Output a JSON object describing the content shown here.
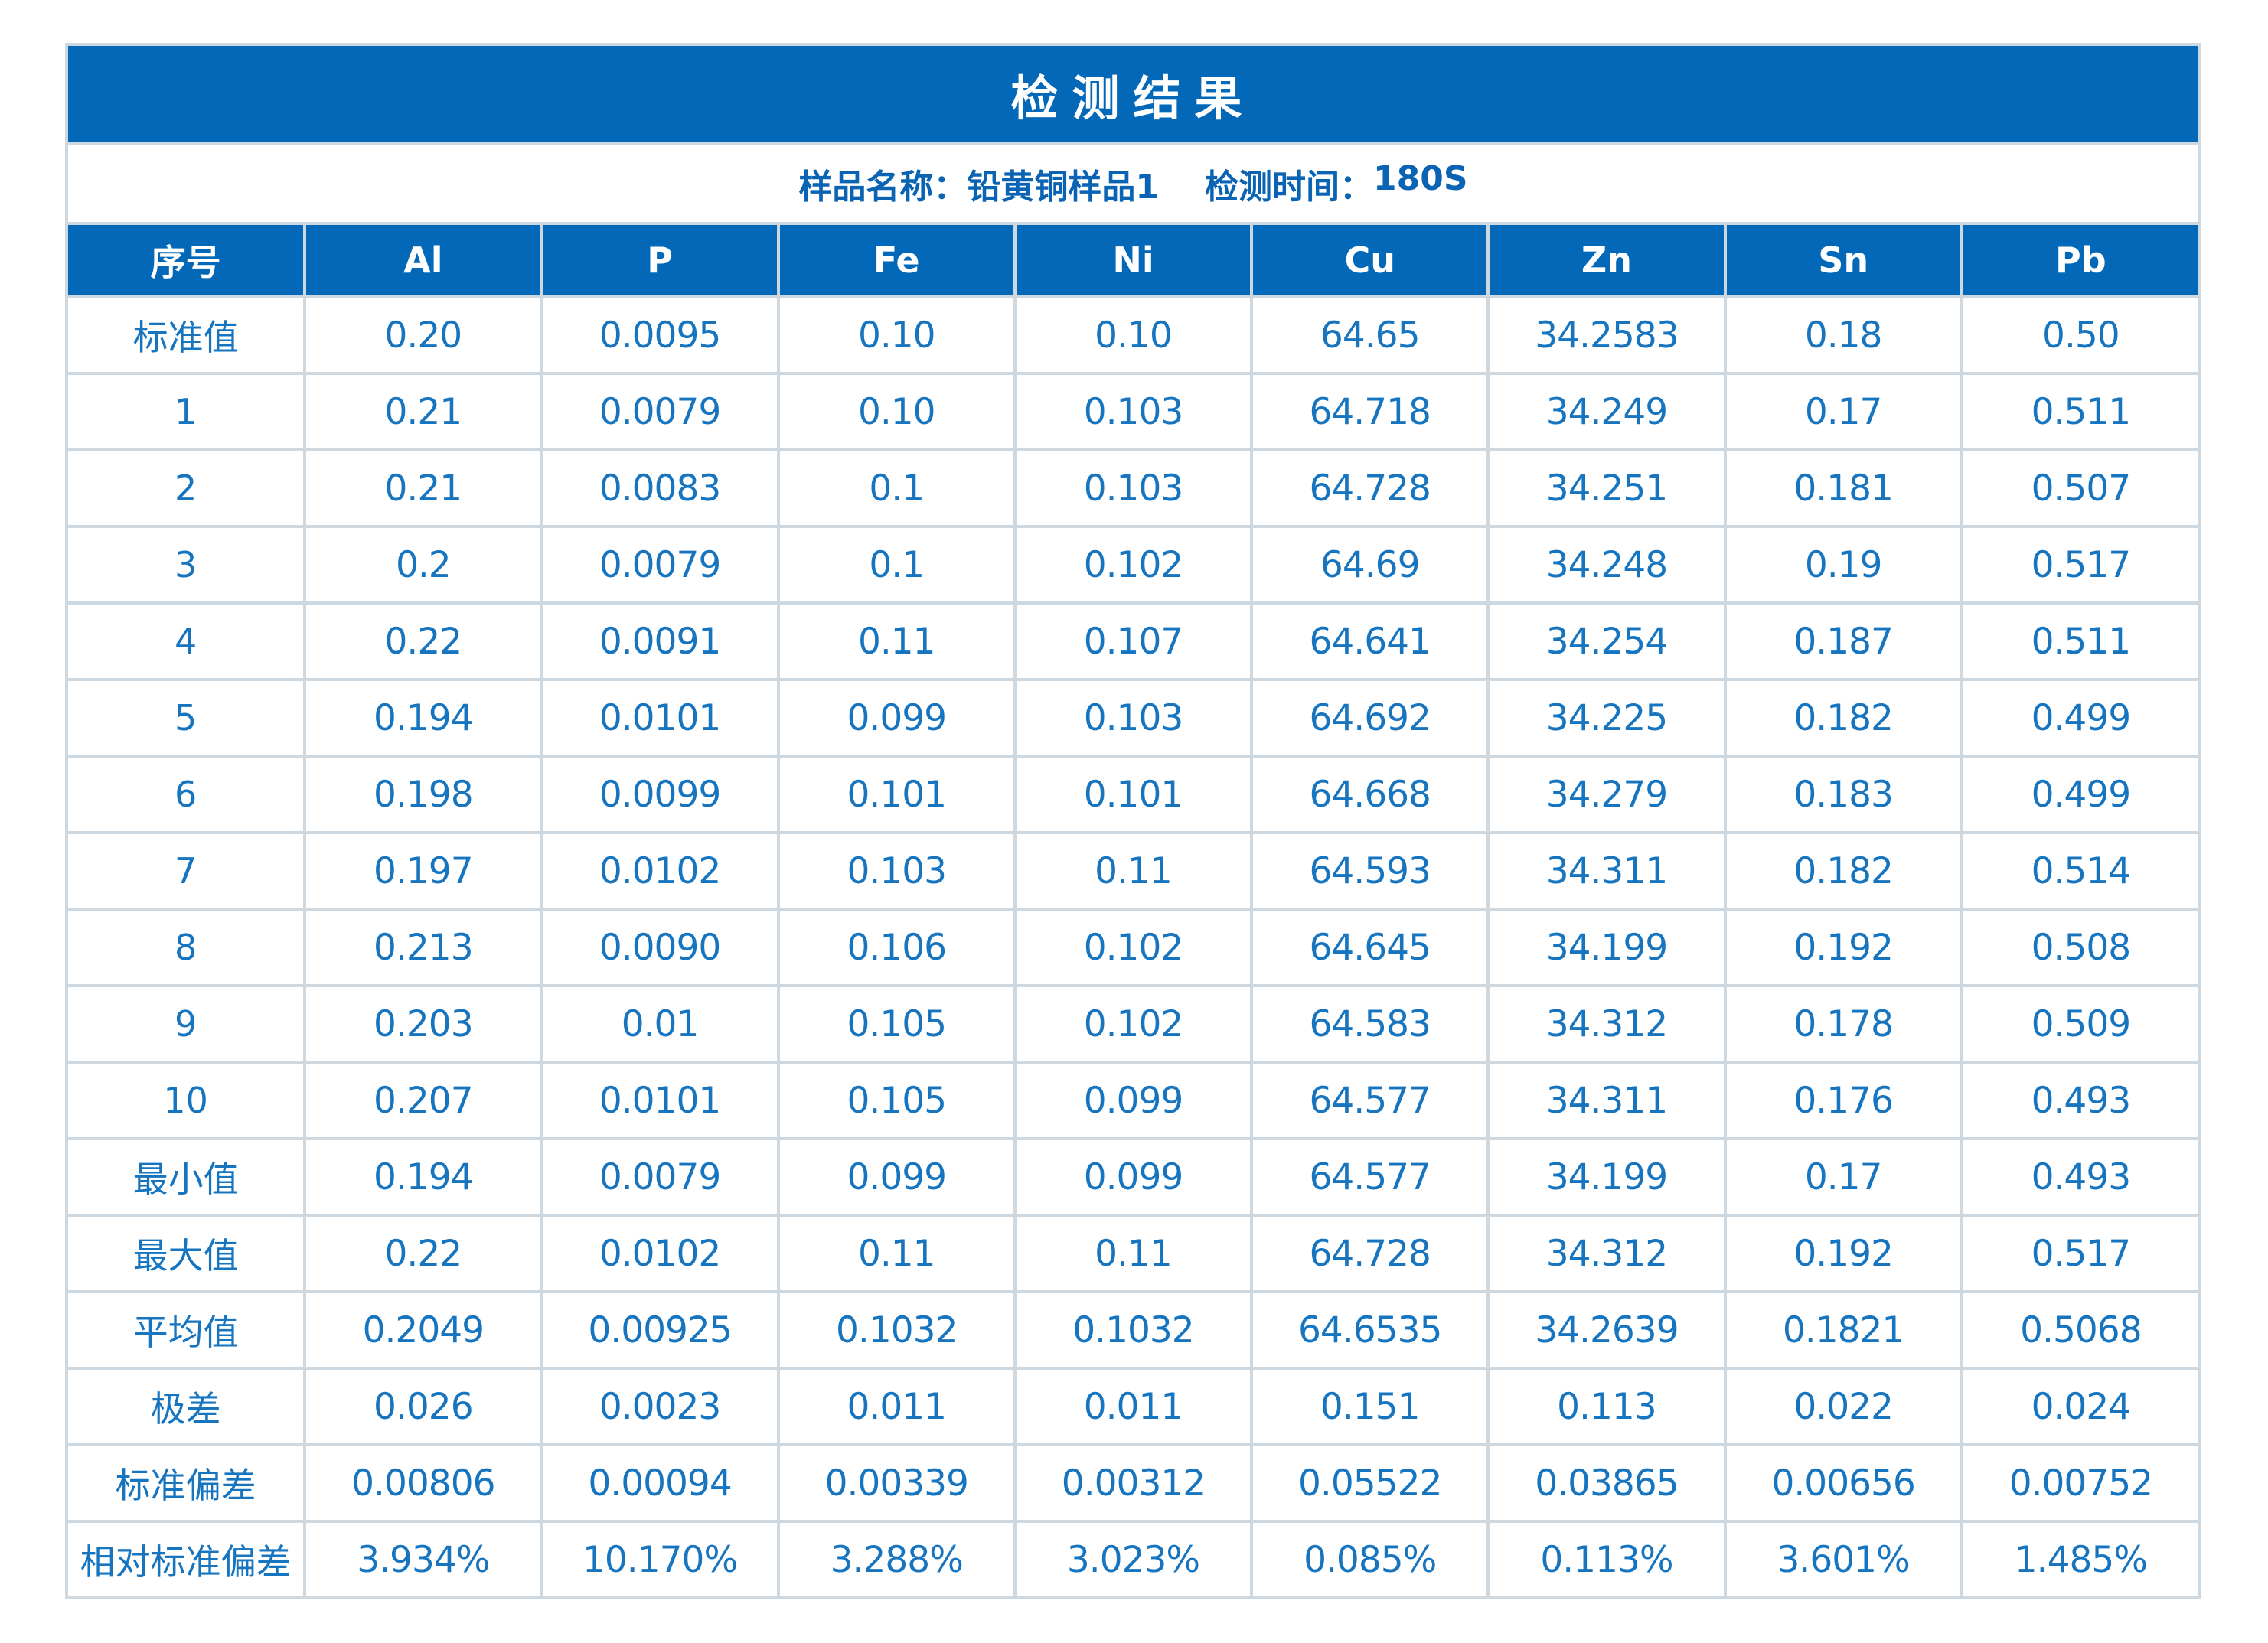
{
  "title": "检测结果",
  "subtitle": {
    "sample_label": "样品名称：",
    "sample_value": "铅黄铜样品1",
    "time_label": "检测时间：",
    "time_value": "180S"
  },
  "colors": {
    "header_blue": "#0268B7",
    "text_blue": "#1775C0",
    "grid_line": "#CED8E1"
  },
  "table": {
    "columns": [
      "序号",
      "Al",
      "P",
      "Fe",
      "Ni",
      "Cu",
      "Zn",
      "Sn",
      "Pb"
    ],
    "rows": [
      {
        "label": "标准值",
        "values": [
          "0.20",
          "0.0095",
          "0.10",
          "0.10",
          "64.65",
          "34.2583",
          "0.18",
          "0.50"
        ]
      },
      {
        "label": "1",
        "values": [
          "0.21",
          "0.0079",
          "0.10",
          "0.103",
          "64.718",
          "34.249",
          "0.17",
          "0.511"
        ]
      },
      {
        "label": "2",
        "values": [
          "0.21",
          "0.0083",
          "0.1",
          "0.103",
          "64.728",
          "34.251",
          "0.181",
          "0.507"
        ]
      },
      {
        "label": "3",
        "values": [
          "0.2",
          "0.0079",
          "0.1",
          "0.102",
          "64.69",
          "34.248",
          "0.19",
          "0.517"
        ]
      },
      {
        "label": "4",
        "values": [
          "0.22",
          "0.0091",
          "0.11",
          "0.107",
          "64.641",
          "34.254",
          "0.187",
          "0.511"
        ]
      },
      {
        "label": "5",
        "values": [
          "0.194",
          "0.0101",
          "0.099",
          "0.103",
          "64.692",
          "34.225",
          "0.182",
          "0.499"
        ]
      },
      {
        "label": "6",
        "values": [
          "0.198",
          "0.0099",
          "0.101",
          "0.101",
          "64.668",
          "34.279",
          "0.183",
          "0.499"
        ]
      },
      {
        "label": "7",
        "values": [
          "0.197",
          "0.0102",
          "0.103",
          "0.11",
          "64.593",
          "34.311",
          "0.182",
          "0.514"
        ]
      },
      {
        "label": "8",
        "values": [
          "0.213",
          "0.0090",
          "0.106",
          "0.102",
          "64.645",
          "34.199",
          "0.192",
          "0.508"
        ]
      },
      {
        "label": "9",
        "values": [
          "0.203",
          "0.01",
          "0.105",
          "0.102",
          "64.583",
          "34.312",
          "0.178",
          "0.509"
        ]
      },
      {
        "label": "10",
        "values": [
          "0.207",
          "0.0101",
          "0.105",
          "0.099",
          "64.577",
          "34.311",
          "0.176",
          "0.493"
        ]
      },
      {
        "label": "最小值",
        "values": [
          "0.194",
          "0.0079",
          "0.099",
          "0.099",
          "64.577",
          "34.199",
          "0.17",
          "0.493"
        ]
      },
      {
        "label": "最大值",
        "values": [
          "0.22",
          "0.0102",
          "0.11",
          "0.11",
          "64.728",
          "34.312",
          "0.192",
          "0.517"
        ]
      },
      {
        "label": "平均值",
        "values": [
          "0.2049",
          "0.00925",
          "0.1032",
          "0.1032",
          "64.6535",
          "34.2639",
          "0.1821",
          "0.5068"
        ]
      },
      {
        "label": "极差",
        "values": [
          "0.026",
          "0.0023",
          "0.011",
          "0.011",
          "0.151",
          "0.113",
          "0.022",
          "0.024"
        ]
      },
      {
        "label": "标准偏差",
        "values": [
          "0.00806",
          "0.00094",
          "0.00339",
          "0.00312",
          "0.05522",
          "0.03865",
          "0.00656",
          "0.00752"
        ]
      },
      {
        "label": "相对标准偏差",
        "values": [
          "3.934%",
          "10.170%",
          "3.288%",
          "3.023%",
          "0.085%",
          "0.113%",
          "3.601%",
          "1.485%"
        ]
      }
    ]
  }
}
